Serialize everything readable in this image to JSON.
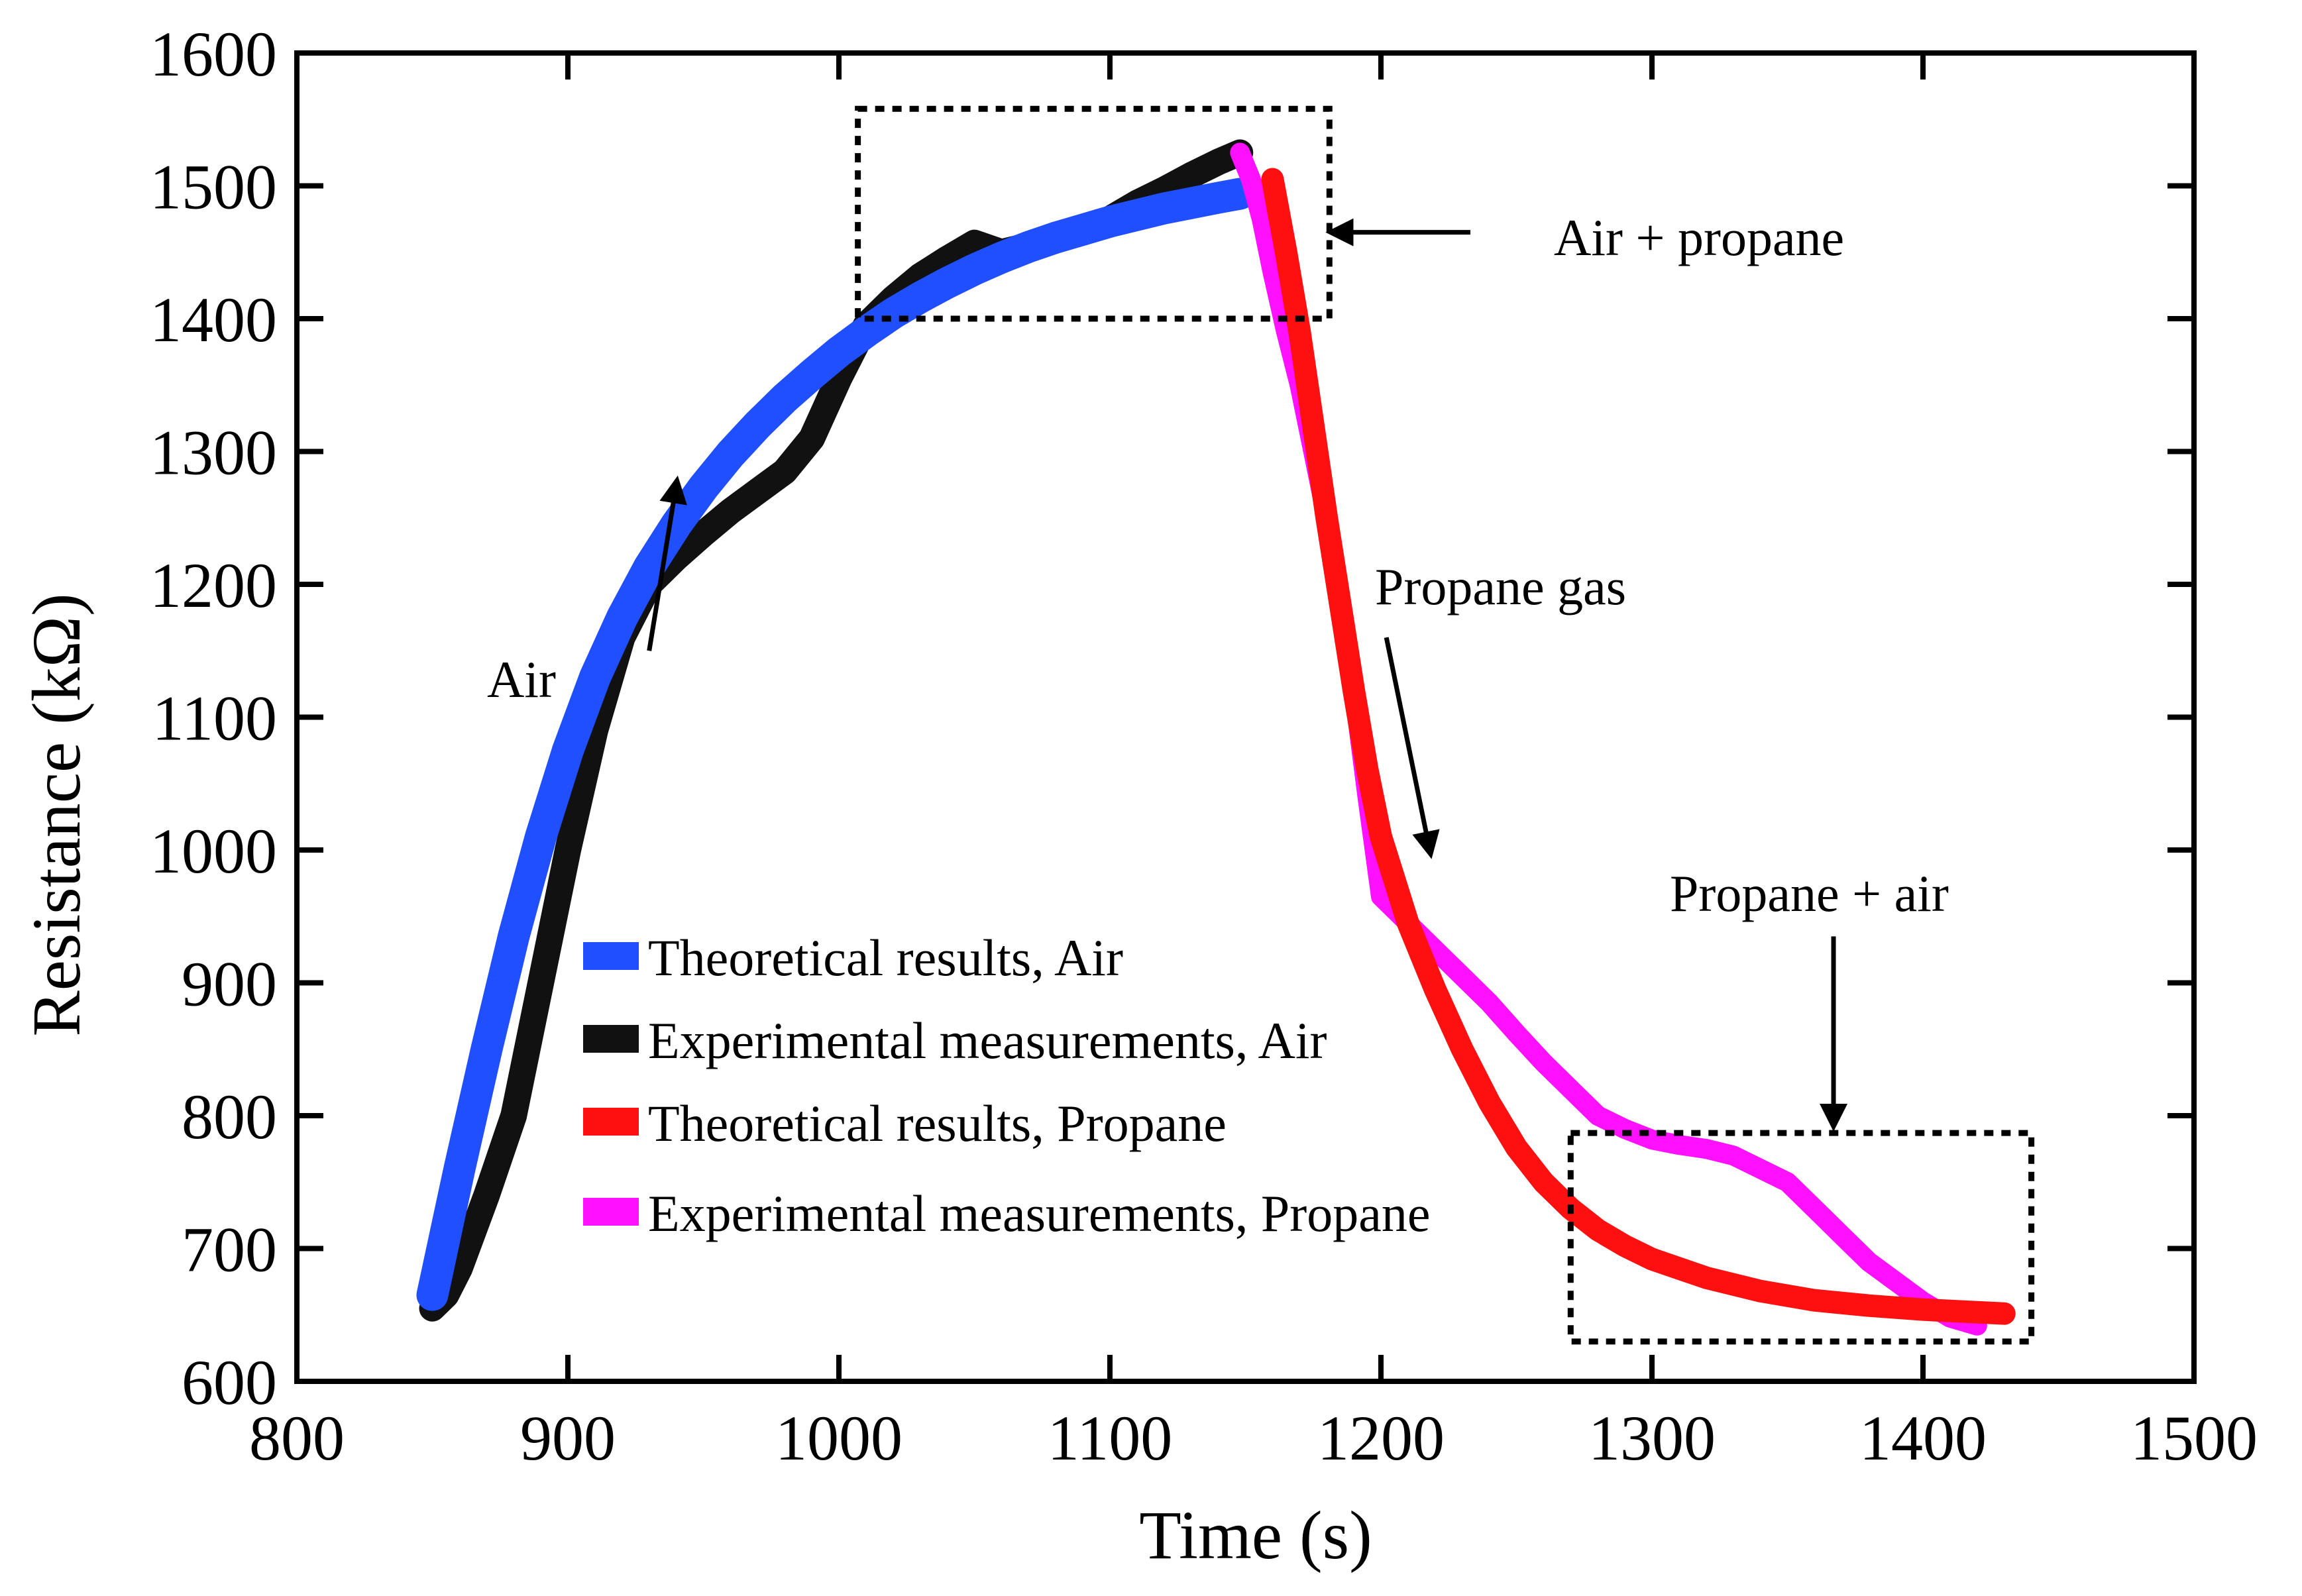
{
  "chart_data": {
    "type": "line",
    "title": "",
    "xlabel": "Time (s)",
    "ylabel": "Resistance (kΩ)",
    "xlim": [
      800,
      1500
    ],
    "ylim": [
      600,
      1600
    ],
    "xticks": [
      800,
      900,
      1000,
      1100,
      1200,
      1300,
      1400,
      1500
    ],
    "yticks": [
      600,
      700,
      800,
      900,
      1000,
      1100,
      1200,
      1300,
      1400,
      1500,
      1600
    ],
    "grid": false,
    "legend_position": "center-left",
    "series": [
      {
        "name": "Theoretical results, Air",
        "color": "#1f4fff",
        "x": [
          850,
          860,
          870,
          880,
          890,
          900,
          910,
          920,
          930,
          940,
          950,
          960,
          970,
          980,
          990,
          1000,
          1010,
          1020,
          1030,
          1040,
          1050,
          1060,
          1070,
          1080,
          1090,
          1100,
          1110,
          1120,
          1130,
          1140,
          1148
        ],
        "y": [
          665,
          760,
          850,
          935,
          1010,
          1075,
          1130,
          1175,
          1213,
          1245,
          1273,
          1298,
          1320,
          1340,
          1358,
          1375,
          1390,
          1404,
          1416,
          1427,
          1437,
          1446,
          1454,
          1461,
          1467,
          1473,
          1478,
          1483,
          1487,
          1491,
          1494
        ]
      },
      {
        "name": "Experimental measurements, Air",
        "color": "#111111",
        "x": [
          850,
          855,
          860,
          870,
          880,
          890,
          900,
          910,
          920,
          930,
          940,
          950,
          960,
          970,
          980,
          990,
          1000,
          1010,
          1020,
          1030,
          1040,
          1050,
          1060,
          1070,
          1080,
          1090,
          1100,
          1110,
          1120,
          1130,
          1140,
          1148
        ],
        "y": [
          655,
          665,
          685,
          740,
          800,
          900,
          1000,
          1090,
          1160,
          1200,
          1220,
          1238,
          1255,
          1270,
          1285,
          1310,
          1355,
          1395,
          1415,
          1432,
          1445,
          1457,
          1450,
          1455,
          1460,
          1468,
          1475,
          1487,
          1497,
          1508,
          1518,
          1525
        ]
      },
      {
        "name": "Theoretical results, Propane",
        "color": "#ff1010",
        "x": [
          1160,
          1165,
          1170,
          1175,
          1180,
          1185,
          1190,
          1195,
          1200,
          1210,
          1220,
          1230,
          1240,
          1250,
          1260,
          1270,
          1280,
          1290,
          1300,
          1320,
          1340,
          1360,
          1380,
          1400,
          1420,
          1430
        ],
        "y": [
          1505,
          1450,
          1390,
          1320,
          1250,
          1185,
          1120,
          1060,
          1010,
          945,
          895,
          850,
          810,
          776,
          750,
          730,
          714,
          702,
          692,
          678,
          668,
          661,
          657,
          654,
          652,
          651
        ]
      },
      {
        "name": "Experimental measurements, Propane",
        "color": "#ff10ff",
        "x": [
          1148,
          1152,
          1156,
          1160,
          1165,
          1170,
          1175,
          1180,
          1185,
          1190,
          1195,
          1200,
          1210,
          1220,
          1230,
          1240,
          1250,
          1260,
          1270,
          1280,
          1290,
          1300,
          1310,
          1320,
          1330,
          1340,
          1350,
          1360,
          1370,
          1380,
          1390,
          1400,
          1410,
          1420
        ],
        "y": [
          1525,
          1505,
          1475,
          1435,
          1390,
          1350,
          1300,
          1250,
          1190,
          1120,
          1040,
          965,
          945,
          925,
          905,
          885,
          862,
          840,
          820,
          800,
          790,
          782,
          778,
          775,
          770,
          760,
          750,
          730,
          710,
          690,
          675,
          660,
          648,
          642
        ]
      }
    ],
    "annotations": [
      {
        "text": "Air",
        "arrow_from": [
          930,
          1150
        ],
        "arrow_to": [
          940,
          1275
        ]
      },
      {
        "text": "Air + propane",
        "arrow_from": [
          1233,
          1465
        ],
        "arrow_to": [
          1183,
          1465
        ]
      },
      {
        "text": "Propane gas",
        "arrow_from": [
          1202,
          1160
        ],
        "arrow_to": [
          1218,
          1000
        ]
      },
      {
        "text": "Propane + air",
        "arrow_from": [
          1367,
          935
        ],
        "arrow_to": [
          1367,
          795
        ]
      }
    ],
    "highlight_boxes": [
      {
        "x": [
          1007,
          1181
        ],
        "y": [
          1400,
          1558
        ]
      },
      {
        "x": [
          1270,
          1440
        ],
        "y": [
          630,
          787
        ]
      }
    ]
  }
}
